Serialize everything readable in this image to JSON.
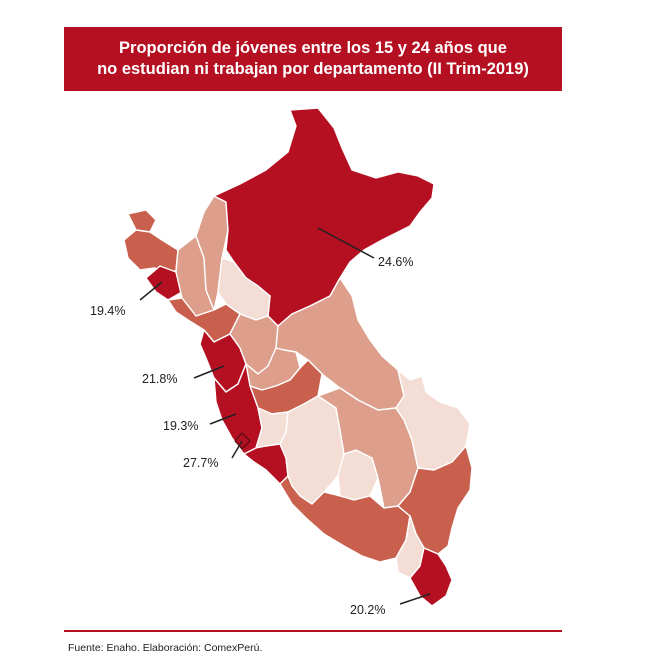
{
  "title": {
    "line1": "Proporción de jóvenes entre los 15 y 24 años que",
    "line2": "no estudian ni trabajan por departamento (II Trim-2019)"
  },
  "colors": {
    "highest": "#b50f22",
    "high": "#c9604e",
    "mid": "#dd9e8c",
    "low": "#f4ddd4",
    "border": "#ffffff"
  },
  "callouts": [
    {
      "name": "loreto",
      "value": "24.6%"
    },
    {
      "name": "lambayeque",
      "value": "19.4%"
    },
    {
      "name": "ancash",
      "value": "21.8%"
    },
    {
      "name": "lima",
      "value": "19.3%"
    },
    {
      "name": "callao",
      "value": "27.7%"
    },
    {
      "name": "tacna",
      "value": "20.2%"
    }
  ],
  "source": "Fuente: Enaho. Elaboración: ComexPerú."
}
